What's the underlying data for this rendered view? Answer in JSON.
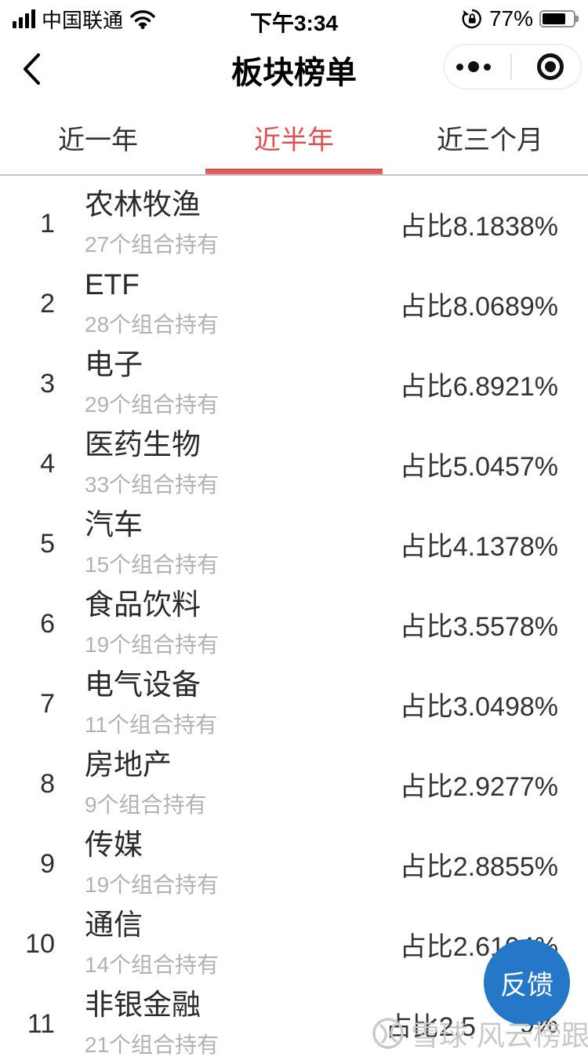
{
  "status_bar": {
    "carrier": "中国联通",
    "time": "下午3:34",
    "battery_percent": "77%",
    "battery_level": 0.77,
    "icons": [
      "signal-bars-icon",
      "wifi-icon",
      "orientation-lock-icon",
      "battery-icon"
    ]
  },
  "header": {
    "title": "板块榜单",
    "back_icon": "chevron-left",
    "capsule": {
      "more_icon": "ellipsis-icon",
      "close_icon": "target-circle-icon"
    }
  },
  "tabs": [
    {
      "label": "近一年",
      "active": false
    },
    {
      "label": "近半年",
      "active": true
    },
    {
      "label": "近三个月",
      "active": false
    }
  ],
  "list": {
    "rows": [
      {
        "rank": "1",
        "name": "农林牧渔",
        "holdings": "27个组合持有",
        "share": "占比8.1838%"
      },
      {
        "rank": "2",
        "name": "ETF",
        "holdings": "28个组合持有",
        "share": "占比8.0689%"
      },
      {
        "rank": "3",
        "name": "电子",
        "holdings": "29个组合持有",
        "share": "占比6.8921%"
      },
      {
        "rank": "4",
        "name": "医药生物",
        "holdings": "33个组合持有",
        "share": "占比5.0457%"
      },
      {
        "rank": "5",
        "name": "汽车",
        "holdings": "15个组合持有",
        "share": "占比4.1378%"
      },
      {
        "rank": "6",
        "name": "食品饮料",
        "holdings": "19个组合持有",
        "share": "占比3.5578%"
      },
      {
        "rank": "7",
        "name": "电气设备",
        "holdings": "11个组合持有",
        "share": "占比3.0498%"
      },
      {
        "rank": "8",
        "name": "房地产",
        "holdings": "9个组合持有",
        "share": "占比2.9277%"
      },
      {
        "rank": "9",
        "name": "传媒",
        "holdings": "19个组合持有",
        "share": "占比2.8855%"
      },
      {
        "rank": "10",
        "name": "通信",
        "holdings": "14个组合持有",
        "share": "占比2.6104%"
      },
      {
        "rank": "11",
        "name": "非银金融",
        "holdings": "21个组合持有",
        "share": "占比2.5",
        "share_end": "9%",
        "share_note": "middle digits hidden behind feedback button"
      }
    ]
  },
  "feedback_button": {
    "label": "反馈",
    "color": "#2577c8"
  },
  "watermark": {
    "text": "雪球·风云榜跟踪",
    "logo": "snowball-logo"
  },
  "colors": {
    "accent_red": "#df5050",
    "tab_underline": "#e26060",
    "feedback_blue": "#2577c8",
    "sub_text": "#b2b2b2",
    "watermark_gray": "#c9c9c9"
  }
}
